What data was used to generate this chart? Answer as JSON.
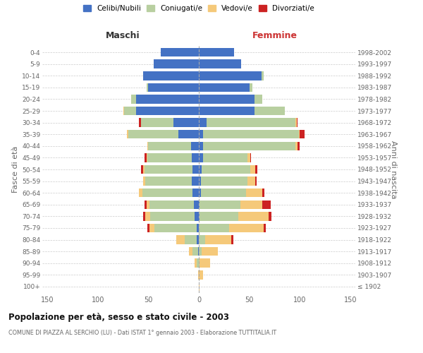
{
  "age_groups": [
    "100+",
    "95-99",
    "90-94",
    "85-89",
    "80-84",
    "75-79",
    "70-74",
    "65-69",
    "60-64",
    "55-59",
    "50-54",
    "45-49",
    "40-44",
    "35-39",
    "30-34",
    "25-29",
    "20-24",
    "15-19",
    "10-14",
    "5-9",
    "0-4"
  ],
  "birth_years": [
    "≤ 1902",
    "1903-1907",
    "1908-1912",
    "1913-1917",
    "1918-1922",
    "1923-1927",
    "1928-1932",
    "1933-1937",
    "1938-1942",
    "1943-1947",
    "1948-1952",
    "1953-1957",
    "1958-1962",
    "1963-1967",
    "1968-1972",
    "1973-1977",
    "1978-1982",
    "1983-1987",
    "1988-1992",
    "1993-1997",
    "1998-2002"
  ],
  "maschi": {
    "celibi": [
      0,
      0,
      0,
      1,
      2,
      2,
      4,
      5,
      6,
      7,
      6,
      7,
      8,
      20,
      25,
      62,
      62,
      50,
      55,
      45,
      38
    ],
    "coniugati": [
      0,
      0,
      2,
      5,
      12,
      42,
      44,
      44,
      50,
      46,
      48,
      44,
      42,
      50,
      32,
      12,
      5,
      2,
      0,
      0,
      0
    ],
    "vedovi": [
      0,
      1,
      2,
      4,
      8,
      5,
      5,
      3,
      3,
      2,
      1,
      1,
      1,
      1,
      0,
      1,
      0,
      0,
      0,
      0,
      0
    ],
    "divorziati": [
      0,
      0,
      0,
      0,
      0,
      2,
      2,
      2,
      0,
      0,
      2,
      2,
      0,
      0,
      2,
      0,
      0,
      0,
      0,
      0,
      0
    ]
  },
  "femmine": {
    "nubili": [
      0,
      0,
      0,
      0,
      0,
      0,
      1,
      1,
      2,
      2,
      3,
      4,
      4,
      4,
      8,
      55,
      55,
      50,
      62,
      42,
      35
    ],
    "coniugate": [
      0,
      0,
      1,
      3,
      6,
      30,
      38,
      40,
      45,
      46,
      48,
      44,
      92,
      95,
      88,
      30,
      8,
      3,
      2,
      0,
      0
    ],
    "vedove": [
      1,
      4,
      10,
      16,
      26,
      34,
      30,
      22,
      16,
      8,
      5,
      3,
      2,
      1,
      1,
      0,
      0,
      0,
      0,
      0,
      0
    ],
    "divorziate": [
      0,
      0,
      0,
      0,
      2,
      2,
      3,
      8,
      2,
      1,
      2,
      1,
      2,
      5,
      1,
      0,
      0,
      0,
      0,
      0,
      0
    ]
  },
  "colors": {
    "celibi": "#4472c4",
    "coniugati": "#b8cfa0",
    "vedovi": "#f5c97a",
    "divorziati": "#cc2222"
  },
  "xlim": 155,
  "title": "Popolazione per età, sesso e stato civile - 2003",
  "subtitle": "COMUNE DI PIAZZA AL SERCHIO (LU) - Dati ISTAT 1° gennaio 2003 - Elaborazione TUTTITALIA.IT",
  "ylabel_left": "Fasce di età",
  "ylabel_right": "Anni di nascita",
  "xlabel_left": "Maschi",
  "xlabel_right": "Femmine",
  "legend_labels": [
    "Celibi/Nubili",
    "Coniugati/e",
    "Vedovi/e",
    "Divorziati/e"
  ],
  "text_color": "#666666",
  "grid_color": "#cccccc"
}
